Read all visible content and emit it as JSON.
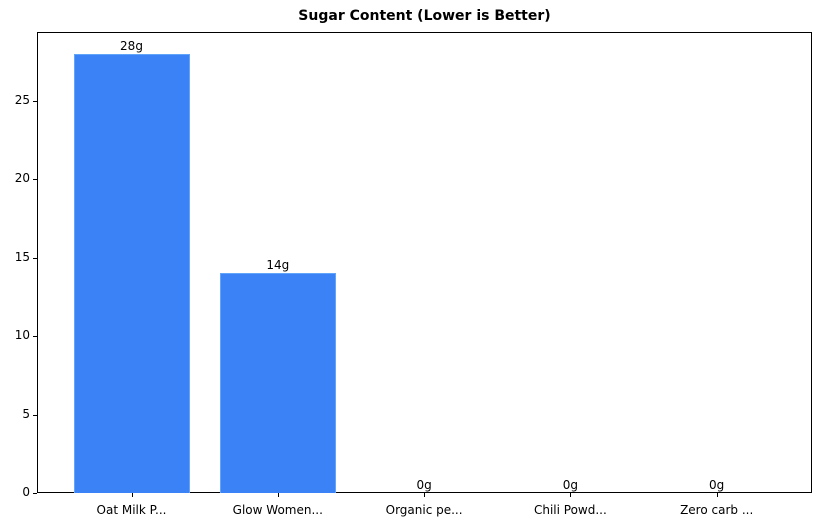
{
  "chart_data": {
    "type": "bar",
    "title": "Sugar Content (Lower is Better)",
    "xlabel": "",
    "ylabel": "",
    "categories": [
      "Oat Milk P...",
      "Glow Women...",
      "Organic pe...",
      "Chili Powd...",
      "Zero carb ..."
    ],
    "values": [
      28,
      14,
      0,
      0,
      0
    ],
    "value_labels": [
      "28g",
      "14g",
      "0g",
      "0g",
      "0g"
    ],
    "yticks": [
      "0",
      "5",
      "10",
      "15",
      "20",
      "25"
    ],
    "ylim": [
      0,
      29.4
    ],
    "grid": false,
    "legend": null,
    "bar_color": "#3b82f6"
  }
}
